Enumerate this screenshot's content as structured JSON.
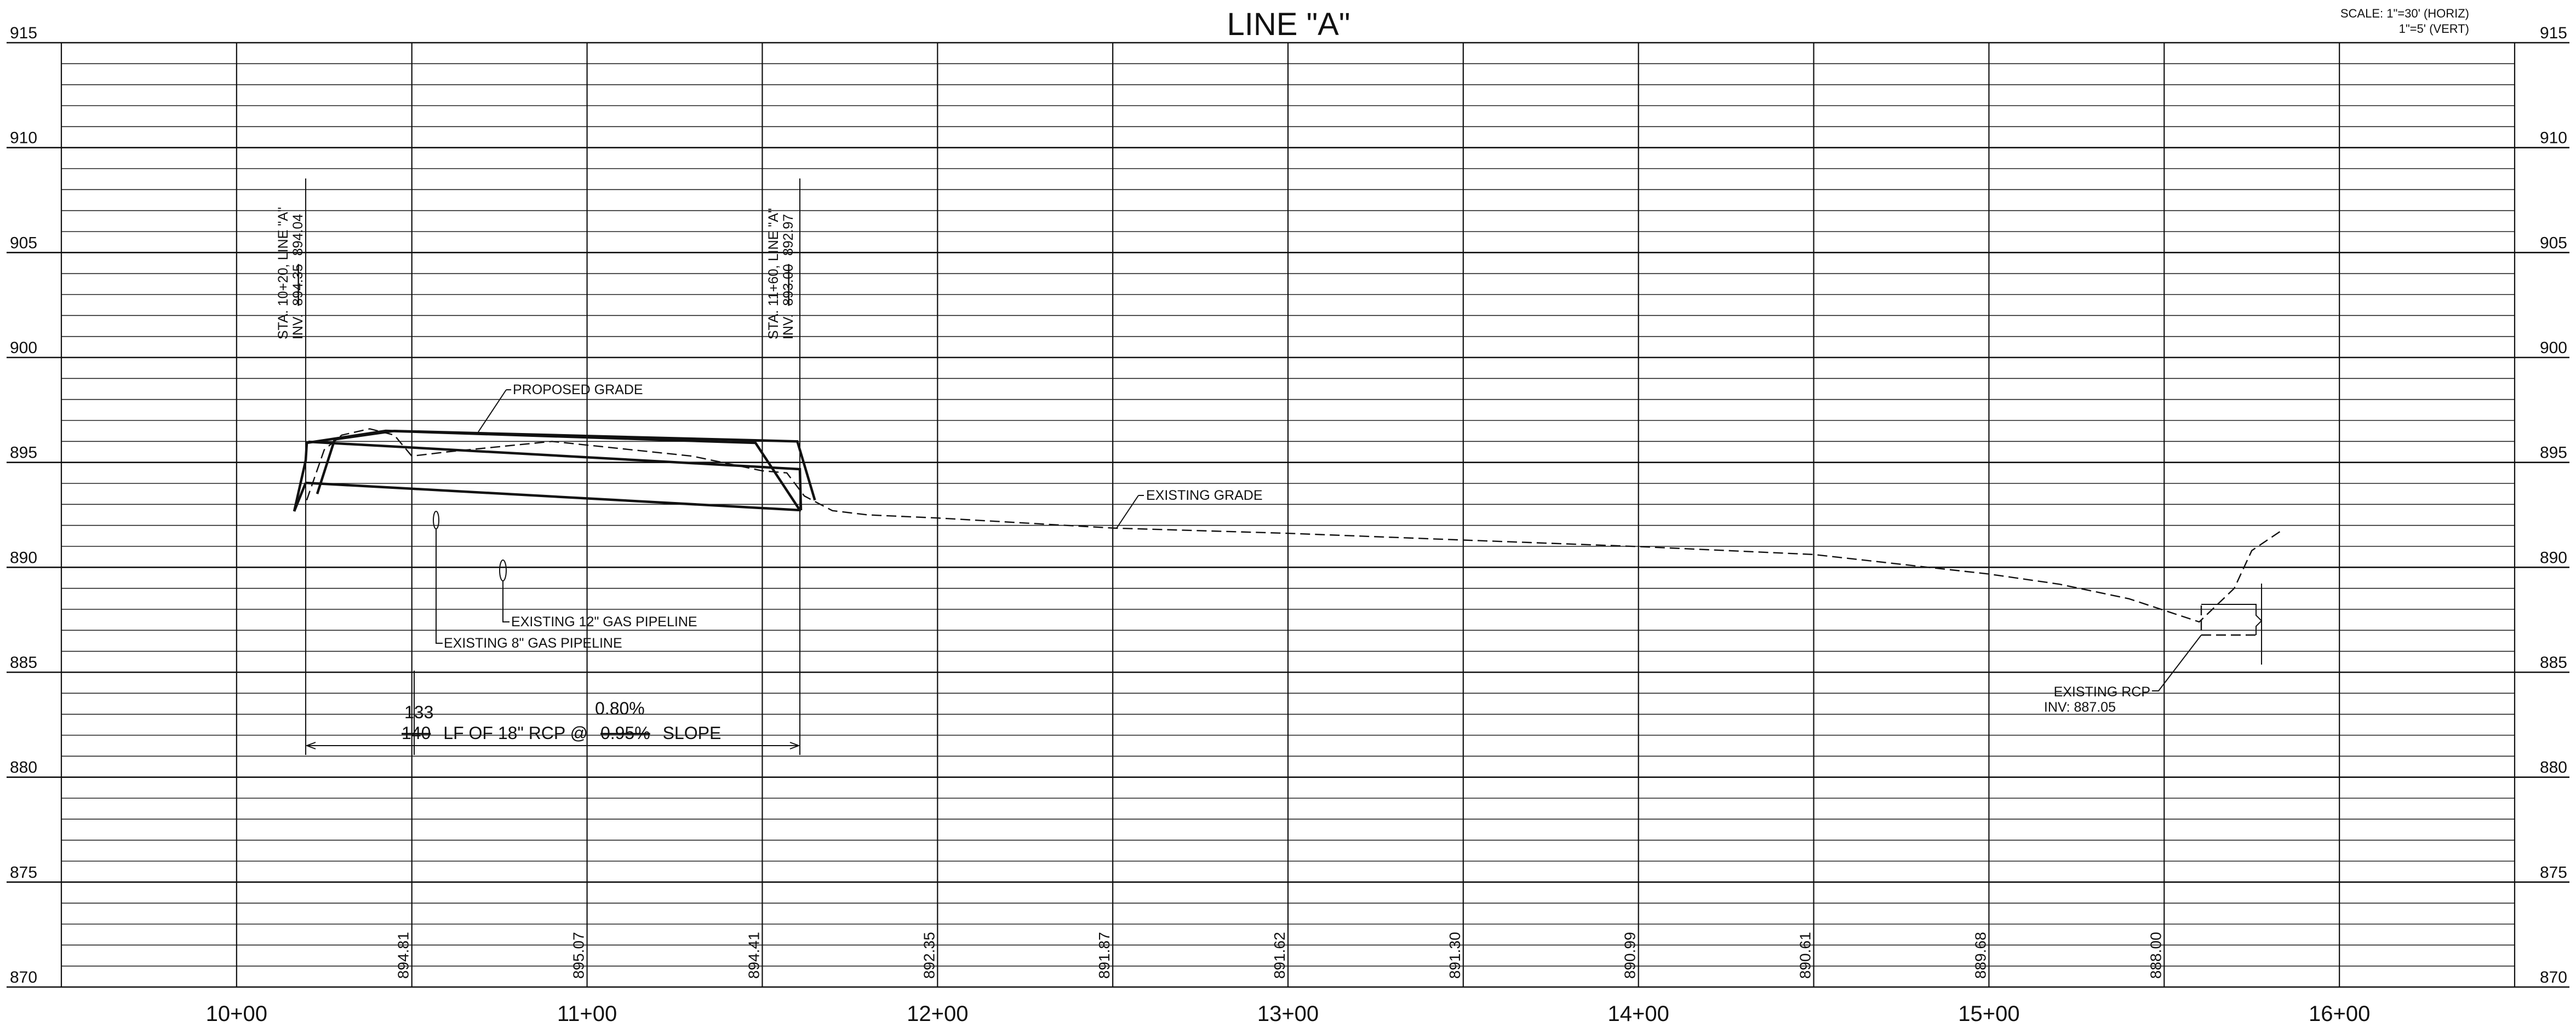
{
  "title": "LINE \"A\"",
  "scale": {
    "horiz": "SCALE: 1\"=30' (HORIZ)",
    "vert": "1\"=5' (VERT)"
  },
  "axes": {
    "elevations": [
      915,
      910,
      905,
      900,
      895,
      890,
      885,
      880,
      875,
      870
    ],
    "stations": [
      "10+00",
      "11+00",
      "12+00",
      "13+00",
      "14+00",
      "15+00",
      "16+00"
    ]
  },
  "ground_elevations": [
    {
      "station": 1050,
      "value": "894.81"
    },
    {
      "station": 1100,
      "value": "895.07"
    },
    {
      "station": 1150,
      "value": "894.41"
    },
    {
      "station": 1200,
      "value": "892.35"
    },
    {
      "station": 1250,
      "value": "891.87"
    },
    {
      "station": 1300,
      "value": "891.62"
    },
    {
      "station": 1350,
      "value": "891.30"
    },
    {
      "station": 1400,
      "value": "890.99"
    },
    {
      "station": 1450,
      "value": "890.61"
    },
    {
      "station": 1500,
      "value": "889.68"
    },
    {
      "station": 1550,
      "value": "888.00"
    }
  ],
  "callouts": {
    "sta1_line1": "STA. 10+20, LINE \"A\"",
    "sta1_inv_prefix": "INV.",
    "sta1_inv_old": "894.35",
    "sta1_inv_new": "894.04",
    "sta2_line1": "STA. 11+60, LINE \"A\"",
    "sta2_inv_prefix": "INV.",
    "sta2_inv_old": "893.00",
    "sta2_inv_new": "892.97",
    "proposed_grade": "PROPOSED GRADE",
    "existing_grade": "EXISTING GRADE",
    "gas12": "EXISTING 12\" GAS PIPELINE",
    "gas8": "EXISTING 8\" GAS PIPELINE",
    "rcp_line1": "EXISTING RCP",
    "rcp_line2": "INV: 887.05"
  },
  "pipe_run": {
    "length_new": "133",
    "slope_new": "0.80%",
    "length_old": "140",
    "text_middle": "LF OF 18\" RCP @",
    "slope_old": "0.95%",
    "text_end": "SLOPE"
  },
  "chart_data": {
    "type": "line",
    "xlabel": "",
    "ylabel": "",
    "xlim": [
      950,
      1650
    ],
    "ylim": [
      870,
      915
    ],
    "series": [
      {
        "name": "EXISTING GRADE",
        "style": "dashed",
        "points": [
          [
            1020,
            893.2
          ],
          [
            1025,
            895.6
          ],
          [
            1030,
            896.3
          ],
          [
            1038,
            896.6
          ],
          [
            1045,
            896.3
          ],
          [
            1050,
            895.3
          ],
          [
            1060,
            895.5
          ],
          [
            1090,
            896.0
          ],
          [
            1130,
            895.3
          ],
          [
            1150,
            894.6
          ],
          [
            1157,
            894.5
          ],
          [
            1162,
            893.4
          ],
          [
            1170,
            892.7
          ],
          [
            1180,
            892.5
          ],
          [
            1200,
            892.35
          ],
          [
            1250,
            891.87
          ],
          [
            1300,
            891.62
          ],
          [
            1350,
            891.3
          ],
          [
            1400,
            890.99
          ],
          [
            1450,
            890.61
          ],
          [
            1500,
            889.68
          ],
          [
            1520,
            889.2
          ],
          [
            1540,
            888.5
          ],
          [
            1560,
            887.4
          ],
          [
            1570,
            889.0
          ],
          [
            1575,
            890.8
          ],
          [
            1583,
            891.7
          ]
        ]
      },
      {
        "name": "PROPOSED GRADE",
        "style": "solid",
        "points": [
          [
            1023,
            893.5
          ],
          [
            1028,
            896.1
          ],
          [
            1045,
            896.5
          ],
          [
            1160,
            896.0
          ],
          [
            1165,
            893.2
          ]
        ]
      }
    ]
  }
}
